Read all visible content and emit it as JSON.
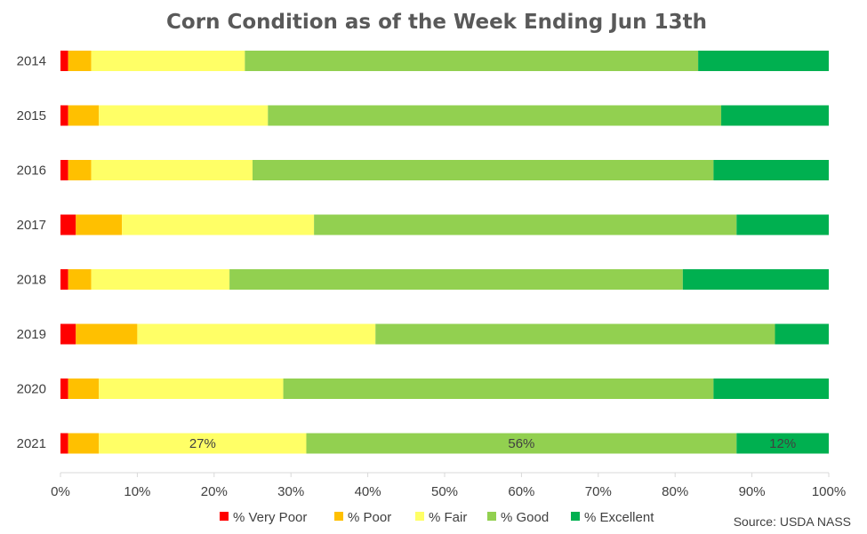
{
  "chart_data": {
    "type": "bar",
    "orientation": "horizontal",
    "stacked": true,
    "title": "Corn Condition as of the Week Ending Jun 13th",
    "source": "Source: USDA NASS",
    "categories": [
      "2014",
      "2015",
      "2016",
      "2017",
      "2018",
      "2019",
      "2020",
      "2021"
    ],
    "series": [
      {
        "name": "% Very Poor",
        "color": "#ff0000",
        "values": [
          1,
          1,
          1,
          2,
          1,
          2,
          1,
          1
        ]
      },
      {
        "name": "% Poor",
        "color": "#ffc000",
        "values": [
          3,
          4,
          3,
          6,
          3,
          8,
          4,
          4
        ]
      },
      {
        "name": "% Fair",
        "color": "#ffff66",
        "values": [
          20,
          22,
          21,
          25,
          18,
          31,
          24,
          27
        ]
      },
      {
        "name": "% Good",
        "color": "#92d050",
        "values": [
          59,
          59,
          60,
          55,
          59,
          52,
          56,
          56
        ]
      },
      {
        "name": "% Excellent",
        "color": "#00b050",
        "values": [
          17,
          14,
          15,
          12,
          19,
          7,
          15,
          12
        ]
      }
    ],
    "data_labels": [
      {
        "category": "2021",
        "series": "% Fair",
        "text": "27%"
      },
      {
        "category": "2021",
        "series": "% Good",
        "text": "56%"
      },
      {
        "category": "2021",
        "series": "% Excellent",
        "text": "12%"
      }
    ],
    "x_ticks": [
      "0%",
      "10%",
      "20%",
      "30%",
      "40%",
      "50%",
      "60%",
      "70%",
      "80%",
      "90%",
      "100%"
    ],
    "xlim": [
      0,
      100
    ],
    "xlabel": "",
    "ylabel": "",
    "grid": false,
    "legend_position": "bottom"
  }
}
